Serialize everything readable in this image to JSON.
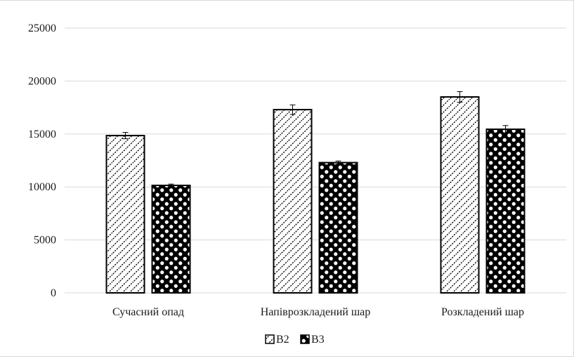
{
  "chart_data": {
    "type": "bar",
    "categories": [
      "Сучасний опад",
      "Напіврозкладений шар",
      "Розкладений шар"
    ],
    "series": [
      {
        "name": "B2",
        "values": [
          14850,
          17300,
          18500
        ],
        "errors": [
          300,
          450,
          500
        ],
        "pattern": "diagonal-hatch"
      },
      {
        "name": "B3",
        "values": [
          10150,
          12300,
          15450
        ],
        "errors": [
          120,
          150,
          350
        ],
        "pattern": "black-dots"
      }
    ],
    "title": "",
    "xlabel": "",
    "ylabel": "",
    "ylim": [
      0,
      25000
    ],
    "yticks": [
      0,
      5000,
      10000,
      15000,
      20000,
      25000
    ],
    "grid": true,
    "legend_position": "bottom"
  },
  "colors": {
    "grid": "#d9d9d9",
    "bar_stroke": "#000000",
    "fill_bg": "#ffffff"
  }
}
